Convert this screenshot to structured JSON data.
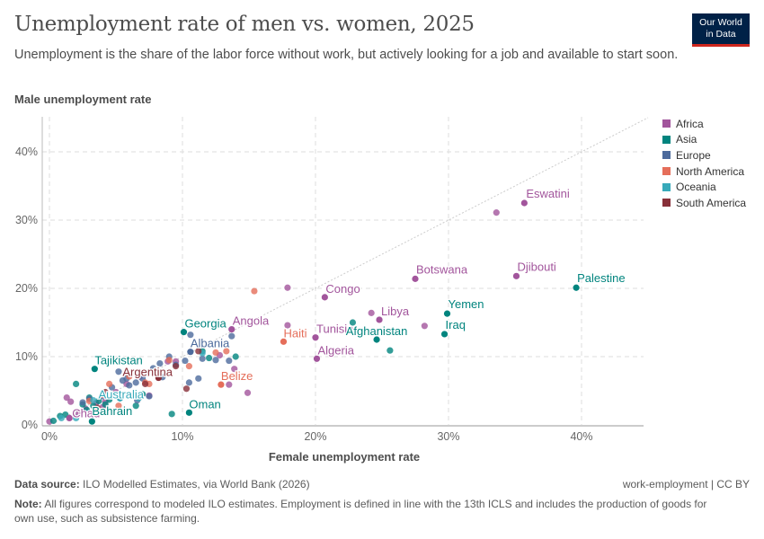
{
  "header": {
    "title": "Unemployment rate of men vs. women, 2025",
    "subtitle": "Unemployment is the share of the labor force without work, but actively looking for a job and available to start soon.",
    "logo_line1": "Our World",
    "logo_line2": "in Data"
  },
  "footer": {
    "source_label": "Data source:",
    "source_text": "ILO Modelled Estimates, via World Bank (2026)",
    "right_text": "work-employment | CC BY",
    "note_label": "Note:",
    "note_text": "All figures correspond to modeled ILO estimates. Employment is defined in line with the 13th ICLS and includes the production of goods for own use, such as subsistence farming."
  },
  "chart_data": {
    "type": "scatter",
    "xlabel": "Female unemployment rate",
    "ylabel": "Male unemployment rate",
    "xlim": [
      -0.5,
      45
    ],
    "ylim": [
      0,
      45
    ],
    "x_ticks": [
      "0%",
      "10%",
      "20%",
      "30%",
      "40%"
    ],
    "y_ticks": [
      "0%",
      "10%",
      "20%",
      "30%",
      "40%"
    ],
    "grid": true,
    "reference_line": "y = x (dotted)",
    "legend_position": "right",
    "regions": [
      {
        "name": "Africa",
        "color": "#a2559c"
      },
      {
        "name": "Asia",
        "color": "#00847e"
      },
      {
        "name": "Europe",
        "color": "#4c6a9c"
      },
      {
        "name": "North America",
        "color": "#e56e5a"
      },
      {
        "name": "Oceania",
        "color": "#38aaba"
      },
      {
        "name": "South America",
        "color": "#883039"
      }
    ],
    "labeled_points": [
      {
        "name": "Eswatini",
        "region": "Africa",
        "x": 35.7,
        "y": 32.5
      },
      {
        "name": "Djibouti",
        "region": "Africa",
        "x": 35.1,
        "y": 21.8
      },
      {
        "name": "Botswana",
        "region": "Africa",
        "x": 27.5,
        "y": 21.4
      },
      {
        "name": "Palestine",
        "region": "Asia",
        "x": 39.6,
        "y": 20.1
      },
      {
        "name": "Congo",
        "region": "Africa",
        "x": 20.7,
        "y": 18.7
      },
      {
        "name": "Yemen",
        "region": "Asia",
        "x": 29.9,
        "y": 16.3
      },
      {
        "name": "Libya",
        "region": "Africa",
        "x": 24.8,
        "y": 15.4
      },
      {
        "name": "Iraq",
        "region": "Asia",
        "x": 29.7,
        "y": 13.3
      },
      {
        "name": "Tunisia",
        "region": "Africa",
        "x": 20.0,
        "y": 12.8
      },
      {
        "name": "Afghanistan",
        "region": "Asia",
        "x": 24.6,
        "y": 12.5
      },
      {
        "name": "Haiti",
        "region": "North America",
        "x": 17.6,
        "y": 12.2
      },
      {
        "name": "Algeria",
        "region": "Africa",
        "x": 20.1,
        "y": 9.7
      },
      {
        "name": "Georgia",
        "region": "Asia",
        "x": 10.1,
        "y": 13.6
      },
      {
        "name": "Angola",
        "region": "Africa",
        "x": 13.7,
        "y": 14.0
      },
      {
        "name": "Albania",
        "region": "Europe",
        "x": 10.6,
        "y": 10.7
      },
      {
        "name": "Belize",
        "region": "North America",
        "x": 12.9,
        "y": 5.9
      },
      {
        "name": "Oman",
        "region": "Asia",
        "x": 10.5,
        "y": 1.8
      },
      {
        "name": "Tajikistan",
        "region": "Asia",
        "x": 3.4,
        "y": 8.2
      },
      {
        "name": "Argentina",
        "region": "South America",
        "x": 8.2,
        "y": 6.9
      },
      {
        "name": "Australia",
        "region": "Oceania",
        "x": 5.3,
        "y": 3.9
      },
      {
        "name": "Chad",
        "region": "Africa",
        "x": 1.5,
        "y": 1.0
      },
      {
        "name": "Bahrain",
        "region": "Asia",
        "x": 3.2,
        "y": 0.5
      }
    ],
    "other_points": {
      "Africa": [
        [
          33.6,
          31.1
        ],
        [
          17.9,
          20.1
        ],
        [
          17.9,
          14.6
        ],
        [
          24.2,
          16.4
        ],
        [
          28.2,
          14.5
        ],
        [
          13.9,
          8.2
        ],
        [
          14.9,
          4.7
        ],
        [
          13.5,
          5.9
        ],
        [
          0,
          0.5
        ],
        [
          1.3,
          4
        ],
        [
          1.6,
          3.4
        ],
        [
          2.7,
          2.4
        ],
        [
          3.5,
          3.2
        ],
        [
          4.2,
          3.4
        ],
        [
          5,
          4.8
        ],
        [
          5.8,
          6
        ],
        [
          6.8,
          7.1
        ],
        [
          7.5,
          4.3
        ],
        [
          8.9,
          9.3
        ],
        [
          9.5,
          9.3
        ],
        [
          12.8,
          10.2
        ],
        [
          2.2,
          1.6
        ],
        [
          4,
          2.6
        ]
      ],
      "Asia": [
        [
          22.8,
          15.0
        ],
        [
          25.6,
          10.9
        ],
        [
          14.0,
          10.0
        ],
        [
          9.2,
          1.6
        ],
        [
          1.2,
          1.5
        ],
        [
          2,
          6
        ],
        [
          2.5,
          3
        ],
        [
          3,
          4
        ],
        [
          3.3,
          2.8
        ],
        [
          3.7,
          3.5
        ],
        [
          2.8,
          2.2
        ],
        [
          4.5,
          3.7
        ],
        [
          6.5,
          2.8
        ],
        [
          7,
          4.5
        ],
        [
          0.3,
          0.6
        ],
        [
          12,
          9.8
        ],
        [
          11.5,
          10.8
        ],
        [
          4.2,
          3
        ],
        [
          0.8,
          1.3
        ]
      ],
      "Europe": [
        [
          13.7,
          13.0
        ],
        [
          10.6,
          13.2
        ],
        [
          2.5,
          3.3
        ],
        [
          3,
          3.8
        ],
        [
          4.7,
          5.5
        ],
        [
          5.2,
          7.8
        ],
        [
          5.5,
          6.5
        ],
        [
          6,
          5.8
        ],
        [
          6.5,
          6.2
        ],
        [
          7,
          6.8
        ],
        [
          7.2,
          7.5
        ],
        [
          7.8,
          8.3
        ],
        [
          8.3,
          9.0
        ],
        [
          9,
          10.0
        ],
        [
          9.5,
          8.8
        ],
        [
          10.2,
          9.4
        ],
        [
          11.5,
          9.7
        ],
        [
          5.8,
          6.8
        ],
        [
          4,
          4.2
        ],
        [
          6.6,
          3.6
        ],
        [
          12.5,
          9.5
        ],
        [
          13.5,
          9.4
        ],
        [
          11.2,
          6.8
        ],
        [
          10.5,
          6.2
        ],
        [
          8.5,
          7.0
        ],
        [
          7.5,
          4.2
        ]
      ],
      "North America": [
        [
          15.4,
          19.6
        ],
        [
          3,
          3.5
        ],
        [
          4,
          4.4
        ],
        [
          4.5,
          6
        ],
        [
          6,
          7.1
        ],
        [
          7.2,
          6.2
        ],
        [
          9,
          9.5
        ],
        [
          10.5,
          8.6
        ],
        [
          12.5,
          10.6
        ],
        [
          13.3,
          10.8
        ],
        [
          5.2,
          2.8
        ],
        [
          3.7,
          2.2
        ],
        [
          7.5,
          6.0
        ]
      ],
      "Oceania": [
        [
          2.9,
          1.7
        ],
        [
          3.3,
          3.6
        ],
        [
          6.7,
          3.9
        ],
        [
          11.5,
          10.5
        ],
        [
          0.9,
          1.0
        ],
        [
          2.0,
          1.0
        ]
      ],
      "South America": [
        [
          4.2,
          4.8
        ],
        [
          6.4,
          4.5
        ],
        [
          9.5,
          8.6
        ],
        [
          10.3,
          5.3
        ],
        [
          11.2,
          10.8
        ],
        [
          7.2,
          6.0
        ],
        [
          3.6,
          2.5
        ]
      ]
    }
  }
}
